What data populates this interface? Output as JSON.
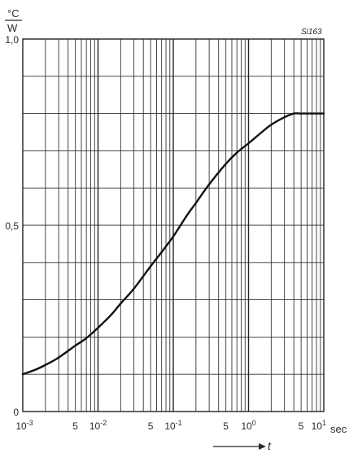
{
  "chart_data": {
    "type": "line",
    "title": "",
    "figure_id": "Si163",
    "y_unit": {
      "numerator": "°C",
      "denominator": "W"
    },
    "x_axis_label": "t",
    "x_unit": "sec",
    "xscale": "log",
    "xlim": [
      0.001,
      10
    ],
    "ylim": [
      0,
      1.0
    ],
    "y_ticks": [
      {
        "value": 0,
        "label": "0"
      },
      {
        "value": 0.5,
        "label": "0,5"
      },
      {
        "value": 1.0,
        "label": "1,0"
      }
    ],
    "x_ticks": [
      {
        "value": 0.001,
        "base": "10",
        "exp": "-3",
        "label": ""
      },
      {
        "value": 0.005,
        "base": "",
        "exp": "",
        "label": "5"
      },
      {
        "value": 0.01,
        "base": "10",
        "exp": "-2",
        "label": ""
      },
      {
        "value": 0.05,
        "base": "",
        "exp": "",
        "label": "5"
      },
      {
        "value": 0.1,
        "base": "10",
        "exp": "-1",
        "label": ""
      },
      {
        "value": 0.5,
        "base": "",
        "exp": "",
        "label": "5"
      },
      {
        "value": 1,
        "base": "10",
        "exp": "0",
        "label": ""
      },
      {
        "value": 5,
        "base": "",
        "exp": "",
        "label": "5"
      },
      {
        "value": 10,
        "base": "10",
        "exp": "1",
        "label": ""
      }
    ],
    "grid": true,
    "series": [
      {
        "x": [
          0.001,
          0.0015,
          0.002,
          0.003,
          0.005,
          0.007,
          0.01,
          0.015,
          0.02,
          0.03,
          0.05,
          0.07,
          0.1,
          0.15,
          0.2,
          0.3,
          0.5,
          0.7,
          1.0,
          1.5,
          2.0,
          3.0,
          4.0,
          5.0,
          7.0,
          10.0
        ],
        "y": [
          0.1,
          0.113,
          0.125,
          0.145,
          0.177,
          0.197,
          0.225,
          0.26,
          0.29,
          0.33,
          0.39,
          0.428,
          0.47,
          0.525,
          0.56,
          0.61,
          0.665,
          0.695,
          0.72,
          0.75,
          0.77,
          0.79,
          0.8,
          0.8,
          0.8,
          0.8
        ]
      }
    ]
  }
}
